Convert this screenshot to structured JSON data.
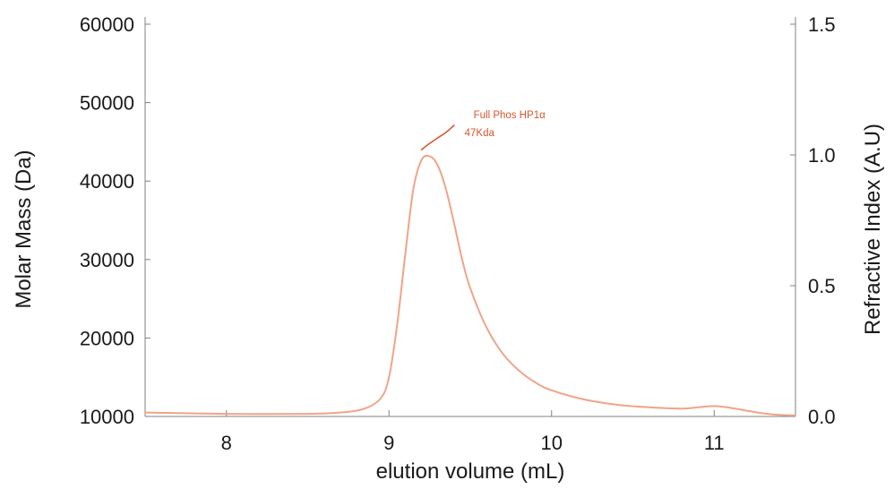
{
  "chart_data": {
    "type": "line",
    "title": "",
    "xlabel": "elution volume (mL)",
    "ylabel_left": "Molar Mass (Da)",
    "ylabel_right": "Refractive Index (A.U)",
    "xlim": [
      7.5,
      11.5
    ],
    "ylim_left": [
      10000,
      60000
    ],
    "ylim_right": [
      0.0,
      1.5
    ],
    "x_ticks": [
      "8",
      "9",
      "10",
      "11"
    ],
    "y_ticks_left": [
      "10000",
      "20000",
      "30000",
      "40000",
      "50000",
      "60000"
    ],
    "y_ticks_right": [
      "0.0",
      "0.5",
      "1.0",
      "1.5"
    ],
    "grid": false,
    "series": [
      {
        "axis": "right",
        "color": "#f0a488",
        "x": [
          7.5,
          8.0,
          8.5,
          8.7,
          8.85,
          8.95,
          9.0,
          9.05,
          9.1,
          9.15,
          9.2,
          9.25,
          9.3,
          9.35,
          9.4,
          9.45,
          9.5,
          9.6,
          9.7,
          9.8,
          9.9,
          10.0,
          10.2,
          10.4,
          10.6,
          10.8,
          10.9,
          11.0,
          11.1,
          11.2,
          11.3,
          11.4,
          11.5
        ],
        "y": [
          0.015,
          0.01,
          0.01,
          0.015,
          0.03,
          0.07,
          0.15,
          0.35,
          0.62,
          0.87,
          0.98,
          0.995,
          0.96,
          0.87,
          0.74,
          0.6,
          0.49,
          0.34,
          0.24,
          0.175,
          0.13,
          0.1,
          0.065,
          0.045,
          0.035,
          0.03,
          0.035,
          0.04,
          0.033,
          0.022,
          0.012,
          0.006,
          0.004
        ]
      },
      {
        "axis": "left",
        "color": "#d4572e",
        "x": [
          9.2,
          9.25,
          9.3,
          9.35,
          9.4
        ],
        "y": [
          44000,
          44800,
          45500,
          46200,
          47100
        ]
      }
    ],
    "annotations": [
      {
        "lines": [
          "Full Phos HP1α",
          "47Kda"
        ],
        "x": 9.52,
        "y": 48000,
        "axis": "left",
        "color": "#d4572e"
      }
    ]
  }
}
